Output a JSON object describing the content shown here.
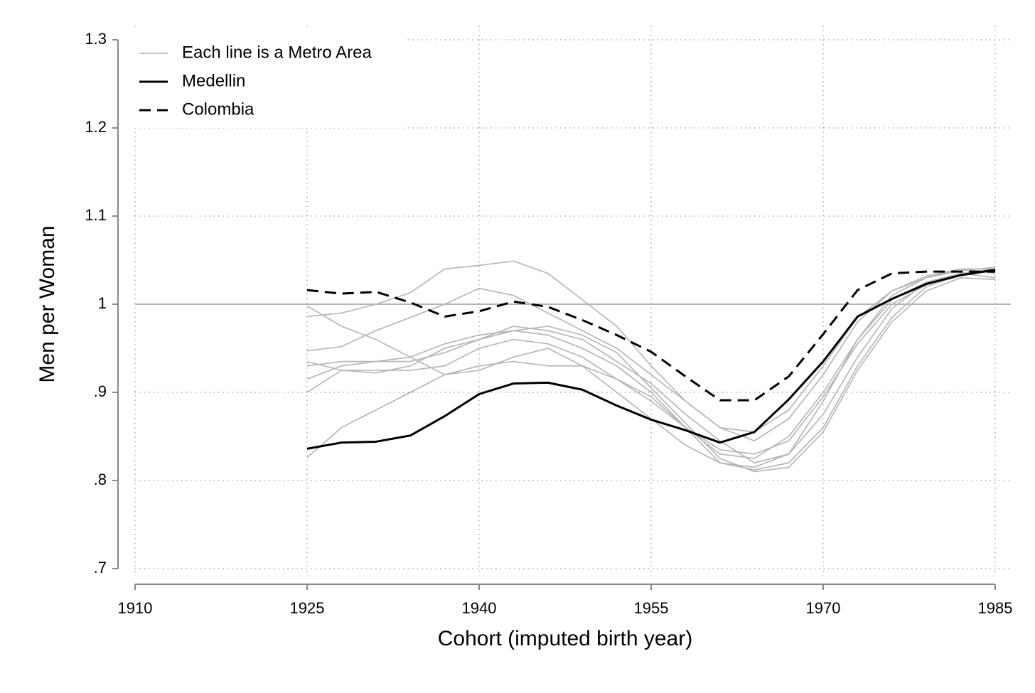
{
  "chart_data": {
    "type": "line",
    "x_label": "Cohort (imputed birth year)",
    "y_label": "Men per Woman",
    "x": [
      1925,
      1928,
      1931,
      1934,
      1937,
      1940,
      1943,
      1946,
      1949,
      1952,
      1955,
      1958,
      1961,
      1964,
      1967,
      1970,
      1973,
      1976,
      1979,
      1982,
      1985
    ],
    "metro_areas": {
      "name": "Each line is a Metro Area",
      "color": "#b4b4b4",
      "lines": [
        [
          0.986,
          0.99,
          1.0,
          1.013,
          1.04,
          1.044,
          1.049,
          1.035,
          1.005,
          0.975,
          0.93,
          0.89,
          0.86,
          0.855,
          0.88,
          0.93,
          0.985,
          1.015,
          1.03,
          1.04,
          1.04
        ],
        [
          0.998,
          0.975,
          0.96,
          0.94,
          0.92,
          0.925,
          0.94,
          0.95,
          0.93,
          0.9,
          0.87,
          0.84,
          0.82,
          0.815,
          0.83,
          0.89,
          0.96,
          1.01,
          1.03,
          1.038,
          1.042
        ],
        [
          0.947,
          0.952,
          0.97,
          0.985,
          1.0,
          1.018,
          1.01,
          0.99,
          0.97,
          0.95,
          0.92,
          0.89,
          0.86,
          0.845,
          0.87,
          0.92,
          0.98,
          1.015,
          1.032,
          1.04,
          1.035
        ],
        [
          0.935,
          0.925,
          0.922,
          0.93,
          0.95,
          0.96,
          0.97,
          0.965,
          0.95,
          0.93,
          0.9,
          0.86,
          0.83,
          0.825,
          0.85,
          0.9,
          0.96,
          1.005,
          1.025,
          1.035,
          1.03
        ],
        [
          0.915,
          0.93,
          0.935,
          0.935,
          0.945,
          0.96,
          0.975,
          0.97,
          0.96,
          0.935,
          0.91,
          0.875,
          0.845,
          0.82,
          0.83,
          0.875,
          0.94,
          0.995,
          1.025,
          1.035,
          1.04
        ],
        [
          0.826,
          0.86,
          0.88,
          0.9,
          0.92,
          0.93,
          0.935,
          0.93,
          0.93,
          0.915,
          0.895,
          0.86,
          0.82,
          0.812,
          0.82,
          0.86,
          0.93,
          0.985,
          1.02,
          1.033,
          1.04
        ],
        [
          0.9,
          0.925,
          0.925,
          0.925,
          0.93,
          0.95,
          0.96,
          0.955,
          0.94,
          0.915,
          0.89,
          0.86,
          0.835,
          0.83,
          0.845,
          0.895,
          0.955,
          1.0,
          1.022,
          1.033,
          1.038
        ],
        [
          0.93,
          0.935,
          0.935,
          0.94,
          0.955,
          0.965,
          0.97,
          0.975,
          0.965,
          0.945,
          0.905,
          0.865,
          0.825,
          0.81,
          0.815,
          0.855,
          0.925,
          0.98,
          1.015,
          1.03,
          1.028
        ]
      ]
    },
    "series": [
      {
        "name": "Medellin",
        "color": "#000000",
        "dashed": false,
        "values": [
          0.836,
          0.843,
          0.844,
          0.851,
          0.873,
          0.898,
          0.91,
          0.911,
          0.903,
          0.885,
          0.869,
          0.857,
          0.843,
          0.855,
          0.892,
          0.935,
          0.986,
          1.006,
          1.023,
          1.033,
          1.039
        ]
      },
      {
        "name": "Colombia",
        "color": "#000000",
        "dashed": true,
        "values": [
          1.016,
          1.012,
          1.014,
          1.002,
          0.986,
          0.992,
          1.003,
          0.997,
          0.982,
          0.965,
          0.946,
          0.918,
          0.891,
          0.891,
          0.918,
          0.966,
          1.016,
          1.035,
          1.037,
          1.037,
          1.037
        ]
      }
    ],
    "reference_line": 1,
    "xlim": [
      1910,
      1985
    ],
    "xticks": [
      1910,
      1925,
      1940,
      1955,
      1970,
      1985
    ],
    "ylim": [
      0.7,
      1.3
    ],
    "yticks": [
      {
        "value": 0.7,
        "label": ".7"
      },
      {
        "value": 0.8,
        "label": ".8"
      },
      {
        "value": 0.9,
        "label": ".9"
      },
      1,
      1.1,
      1.2,
      1.3
    ],
    "grid": true,
    "legend": "top-left"
  }
}
